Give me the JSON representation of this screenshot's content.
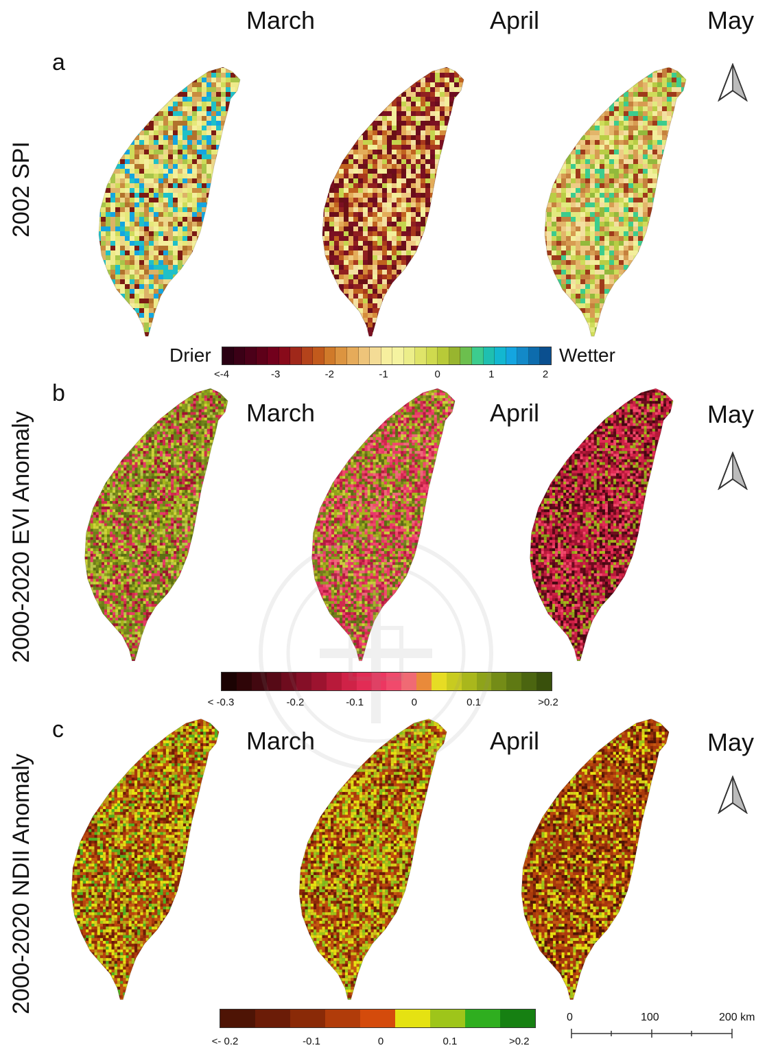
{
  "months": [
    "March",
    "April",
    "May"
  ],
  "rows": [
    {
      "letter": "a",
      "label": "2002 SPI",
      "legend": {
        "left": "Drier",
        "right": "Wetter",
        "ticks": [
          "<-4",
          "-3",
          "-2",
          "-1",
          "0",
          "1",
          "2"
        ],
        "colors": [
          "#2a0012",
          "#3b0016",
          "#4c0019",
          "#5e0019",
          "#72001c",
          "#880a1a",
          "#a0281a",
          "#b4431b",
          "#c25a1c",
          "#d07a2a",
          "#dc9440",
          "#e6ab5a",
          "#eec47a",
          "#f4dc96",
          "#f7ef9e",
          "#f5f3a0",
          "#ecee8a",
          "#dfe469",
          "#cfda4e",
          "#b8ca38",
          "#98b52f",
          "#6cbf4e",
          "#3ccc8e",
          "#1fbfb0",
          "#13b7d0",
          "#14a5e0",
          "#1389c8",
          "#0d6cad",
          "#0a4f8f"
        ],
        "tick_positions": [
          0,
          0.1667,
          0.3333,
          0.5,
          0.6667,
          0.8333,
          1.0
        ]
      },
      "map_palette": {
        "March": [
          "#f3ef9c",
          "#eeea8a",
          "#ecd78a",
          "#dcb267",
          "#c98c40",
          "#b1722c",
          "#e6e87a",
          "#cfdc5a",
          "#a8c54a",
          "#1fc0c8",
          "#14a5e0",
          "#7b1a14"
        ],
        "April": [
          "#6b0c1e",
          "#7a1022",
          "#8f1f20",
          "#a8381d",
          "#c0621f",
          "#d58d3c",
          "#e3ac5a",
          "#efcb82",
          "#f3e0a1",
          "#f3ef9c",
          "#c5d54e",
          "#6a1016"
        ],
        "May": [
          "#c5813e",
          "#d79c52",
          "#e3b56a",
          "#eecb85",
          "#f3e0a1",
          "#f3ef9c",
          "#e2ea80",
          "#cfdc5a",
          "#b9cd45",
          "#93b93c",
          "#9e3a1b",
          "#3ccc8e"
        ]
      }
    },
    {
      "letter": "b",
      "label": "2000-2020 EVI Anomaly",
      "legend": {
        "ticks": [
          "< -0.3",
          "-0.2",
          "-0.1",
          "0",
          "0.1",
          ">0.2"
        ],
        "colors": [
          "#1b0303",
          "#2f0508",
          "#420810",
          "#560a16",
          "#6e0c1e",
          "#850f27",
          "#9c132f",
          "#b81a3a",
          "#cf2247",
          "#e22c55",
          "#ec3761",
          "#f04a6c",
          "#f06a74",
          "#e98a3a",
          "#e6dc24",
          "#c8cb20",
          "#a9b71c",
          "#8ea31a",
          "#748c17",
          "#5f7913",
          "#4b6510",
          "#39500c"
        ],
        "tick_positions": [
          0,
          0.2273,
          0.4091,
          0.5909,
          0.7727,
          1.0
        ]
      },
      "map_palette": {
        "March": [
          "#8ea31a",
          "#a9b71c",
          "#6f7f1a",
          "#5b6d14",
          "#cfd33a",
          "#e8386a",
          "#d12a4e",
          "#9c132f",
          "#b9c44a",
          "#7f8f20"
        ],
        "April": [
          "#e8386a",
          "#d12a4e",
          "#a9b71c",
          "#c9d13a",
          "#8ea31a",
          "#f04a6c",
          "#b31a3f",
          "#6f7f1a",
          "#ec6a7a",
          "#5b6d14"
        ],
        "May": [
          "#9c132f",
          "#b81a3a",
          "#6e0c1e",
          "#cf2247",
          "#e22c55",
          "#560a16",
          "#a9b71c",
          "#8ea31a",
          "#420810",
          "#f04a6c"
        ]
      }
    },
    {
      "letter": "c",
      "label": "2000-2020 NDII Anomaly",
      "legend": {
        "ticks": [
          "<- 0.2",
          "-0.1",
          "0",
          "0.1",
          ">0.2"
        ],
        "colors": [
          "#4e1405",
          "#6b1c07",
          "#8a2a07",
          "#b13c0a",
          "#d44b0c",
          "#e5e212",
          "#9ec51a",
          "#2fae1f",
          "#168012"
        ],
        "tick_positions": [
          0,
          0.2778,
          0.5,
          0.7222,
          0.9444
        ]
      },
      "map_palette": {
        "March": [
          "#a8380e",
          "#8a2a07",
          "#b9470d",
          "#d6d11a",
          "#e5e212",
          "#9ec51a",
          "#6b1c07",
          "#c35a10",
          "#bf9a14",
          "#4fb020"
        ],
        "April": [
          "#a8380e",
          "#8a2a07",
          "#e5e212",
          "#d6d11a",
          "#9ec51a",
          "#b9470d",
          "#6b1c07",
          "#c9c018",
          "#7fbd1f",
          "#c35a10"
        ],
        "May": [
          "#a8380e",
          "#8a2a07",
          "#b9470d",
          "#6b1c07",
          "#e5e212",
          "#d6d11a",
          "#c35a10",
          "#9ec51a",
          "#4e1405",
          "#a83a0c"
        ]
      }
    }
  ],
  "scalebar": {
    "labels": [
      "0",
      "100",
      "200 km"
    ]
  },
  "north_arrow_icon": "north-arrow-icon",
  "watermark_icon": "university-seal-watermark"
}
